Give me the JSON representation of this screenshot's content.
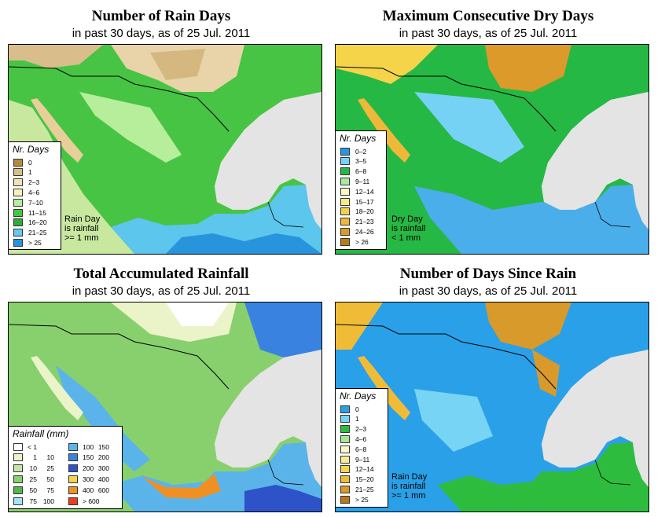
{
  "panels": {
    "rain_days": {
      "title": "Number of Rain Days",
      "subtitle": "in past 30 days, as of 25 Jul. 2011",
      "legend_title": "Nr. Days",
      "note": [
        "Rain Day",
        "is rainfall",
        ">= 1 mm"
      ],
      "legend": [
        {
          "label": "0",
          "color": "#b58a3c"
        },
        {
          "label": "1",
          "color": "#d9be8c"
        },
        {
          "label": "2–3",
          "color": "#f3e2b8"
        },
        {
          "label": "4–6",
          "color": "#f7f3b4"
        },
        {
          "label": "7–10",
          "color": "#b6ee9c"
        },
        {
          "label": "11–15",
          "color": "#44c842"
        },
        {
          "label": "16–20",
          "color": "#2aae36"
        },
        {
          "label": "21–25",
          "color": "#66c9ee"
        },
        {
          "label": "> 25",
          "color": "#2794dc"
        }
      ]
    },
    "dry_days": {
      "title": "Maximum Consecutive Dry Days",
      "subtitle": "in past 30 days, as of 25 Jul. 2011",
      "legend_title": "Nr. Days",
      "note": [
        "Dry Day",
        "is rainfall",
        "< 1 mm"
      ],
      "legend": [
        {
          "label": "0–2",
          "color": "#2a94e0"
        },
        {
          "label": "3–5",
          "color": "#76d2f5"
        },
        {
          "label": "6–8",
          "color": "#26b844"
        },
        {
          "label": "9–11",
          "color": "#a9ec9e"
        },
        {
          "label": "12–14",
          "color": "#fbf8c6"
        },
        {
          "label": "15–17",
          "color": "#f8ea88"
        },
        {
          "label": "18–20",
          "color": "#f5d44a"
        },
        {
          "label": "21–23",
          "color": "#f0b838"
        },
        {
          "label": "24–26",
          "color": "#dc9a2a"
        },
        {
          "label": "> 26",
          "color": "#b87a1c"
        }
      ]
    },
    "rainfall": {
      "title": "Total Accumulated Rainfall",
      "subtitle": "in past 30 days, as of 25 Jul. 2011",
      "legend_title": "Rainfall (mm)",
      "legend_left": [
        {
          "lo": "< 1",
          "hi": "",
          "color": "#ffffff"
        },
        {
          "lo": "1",
          "hi": "10",
          "color": "#eaf4c8"
        },
        {
          "lo": "10",
          "hi": "25",
          "color": "#c4e8a4"
        },
        {
          "lo": "25",
          "hi": "50",
          "color": "#88d06e"
        },
        {
          "lo": "50",
          "hi": "75",
          "color": "#52b848"
        },
        {
          "lo": "75",
          "hi": "100",
          "color": "#a6e4f4"
        }
      ],
      "legend_right": [
        {
          "lo": "100",
          "hi": "150",
          "color": "#5ab4ea"
        },
        {
          "lo": "150",
          "hi": "200",
          "color": "#3a82e0"
        },
        {
          "lo": "200",
          "hi": "300",
          "color": "#2e52c8"
        },
        {
          "lo": "300",
          "hi": "400",
          "color": "#f6d24e"
        },
        {
          "lo": "400",
          "hi": "600",
          "color": "#f09024"
        },
        {
          "lo": "> 600",
          "hi": "",
          "color": "#e84018"
        }
      ]
    },
    "since_rain": {
      "title": "Number of Days Since Rain",
      "subtitle": "in past 30 days, as of 25 Jul. 2011",
      "legend_title": "Nr. Days",
      "note": [
        "Rain Day",
        "is rainfall",
        ">= 1 mm"
      ],
      "legend": [
        {
          "label": "0",
          "color": "#2aa0e8"
        },
        {
          "label": "1",
          "color": "#78d4f4"
        },
        {
          "label": "2–3",
          "color": "#2ebc3e"
        },
        {
          "label": "4–6",
          "color": "#a4e894"
        },
        {
          "label": "6–8",
          "color": "#fbf8c6"
        },
        {
          "label": "9–11",
          "color": "#f8ec92"
        },
        {
          "label": "12–14",
          "color": "#f5d650"
        },
        {
          "label": "15–20",
          "color": "#f0bc38"
        },
        {
          "label": "21–25",
          "color": "#d89a2a"
        },
        {
          "label": "> 25",
          "color": "#b8781c"
        }
      ]
    }
  },
  "colors": {
    "ocean": "#e4e4e4",
    "usa_fill": "#ffffff",
    "border": "#000000"
  }
}
